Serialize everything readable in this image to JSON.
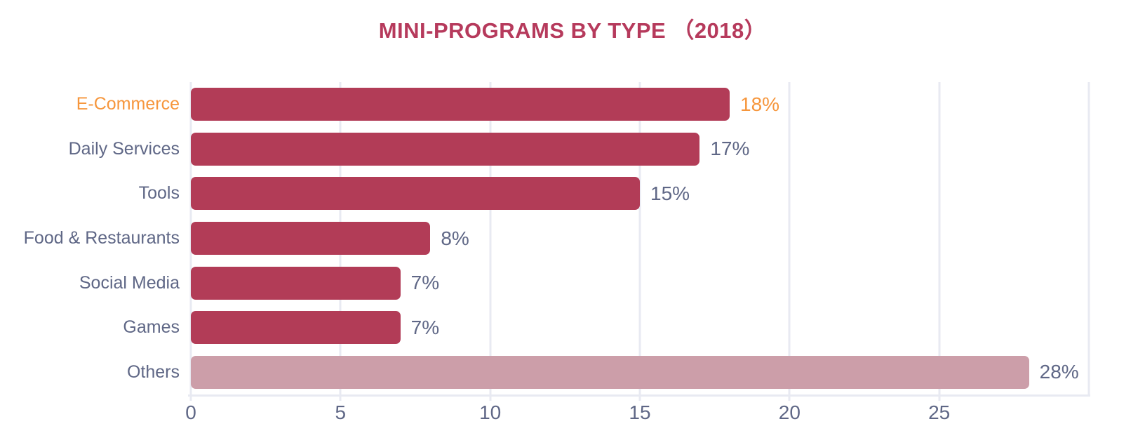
{
  "colors": {
    "title_color": "#b63a5c",
    "bar_color": "#b23c57",
    "others_color": "#cc9ea9",
    "label_color": "#5f6786",
    "accent_color": "#f6963c",
    "grid_color": "#e8eaf2"
  },
  "chart_data": {
    "type": "bar",
    "orientation": "horizontal",
    "title": "MINI-PROGRAMS BY TYPE （2018）",
    "categories": [
      "E-Commerce",
      "Daily Services",
      "Tools",
      "Food & Restaurants",
      "Social Media",
      "Games",
      "Others"
    ],
    "values": [
      18,
      17,
      15,
      8,
      7,
      7,
      28
    ],
    "value_labels": [
      "18%",
      "17%",
      "15%",
      "8%",
      "7%",
      "7%",
      "28%"
    ],
    "highlight_index": 0,
    "others_index": 6,
    "xlabel": "",
    "ylabel": "",
    "xlim": [
      0,
      30
    ],
    "xticks": [
      0,
      5,
      10,
      15,
      20,
      25
    ],
    "grid_x": [
      0,
      5,
      10,
      15,
      20,
      25,
      30
    ],
    "grid": "on",
    "legend": "none"
  }
}
